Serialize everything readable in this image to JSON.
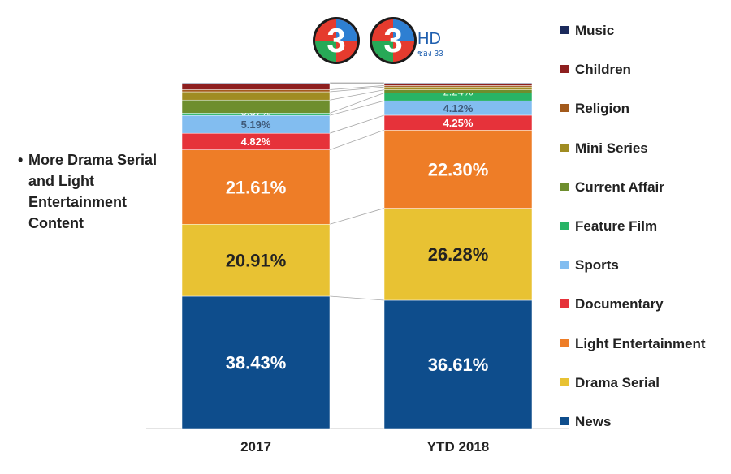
{
  "logos": {
    "hd_text": "HD",
    "channel_text": "ช่อง 33"
  },
  "bullet": {
    "text": "More Drama Serial and Light Entertainment Content"
  },
  "chart_data": {
    "type": "bar",
    "stacked": true,
    "categories": [
      "2017",
      "YTD 2018"
    ],
    "series": [
      {
        "name": "News",
        "values": [
          38.43,
          36.61
        ],
        "labels": [
          "38.43%",
          "36.61%"
        ],
        "color": "#0E4D8C"
      },
      {
        "name": "Drama Serial",
        "values": [
          20.91,
          26.28
        ],
        "labels": [
          "20.91%",
          "26.28%"
        ],
        "color": "#E8C233"
      },
      {
        "name": "Light Entertainment",
        "values": [
          21.61,
          22.3
        ],
        "labels": [
          "21.61%",
          "22.30%"
        ],
        "color": "#EE7D27"
      },
      {
        "name": "Documentary",
        "values": [
          4.82,
          4.25
        ],
        "labels": [
          "4.82%",
          "4.25%"
        ],
        "color": "#E6323A"
      },
      {
        "name": "Sports",
        "values": [
          5.19,
          4.12
        ],
        "labels": [
          "5.19%",
          "4.12%"
        ],
        "color": "#82BDF0"
      },
      {
        "name": "Feature Film",
        "values": [
          0.67,
          2.24
        ],
        "labels": [
          "0.67%",
          "2.24%"
        ],
        "color": "#28B466"
      },
      {
        "name": "Current Affair",
        "values": [
          3.8,
          0.9
        ],
        "labels": [
          "",
          ""
        ],
        "color": "#6E8E2E"
      },
      {
        "name": "Mini Series",
        "values": [
          2.4,
          0.8
        ],
        "labels": [
          "",
          ""
        ],
        "color": "#A08C22"
      },
      {
        "name": "Religion",
        "values": [
          0.6,
          0.4
        ],
        "labels": [
          "",
          ""
        ],
        "color": "#A35A1C"
      },
      {
        "name": "Children",
        "values": [
          1.8,
          0.6
        ],
        "labels": [
          "",
          ""
        ],
        "color": "#8E1F1F"
      },
      {
        "name": "Music",
        "values": [
          0.2,
          0.2
        ],
        "labels": [
          "",
          ""
        ],
        "color": "#1B2A5C"
      }
    ],
    "legend_position": "right",
    "gridlines": false
  }
}
